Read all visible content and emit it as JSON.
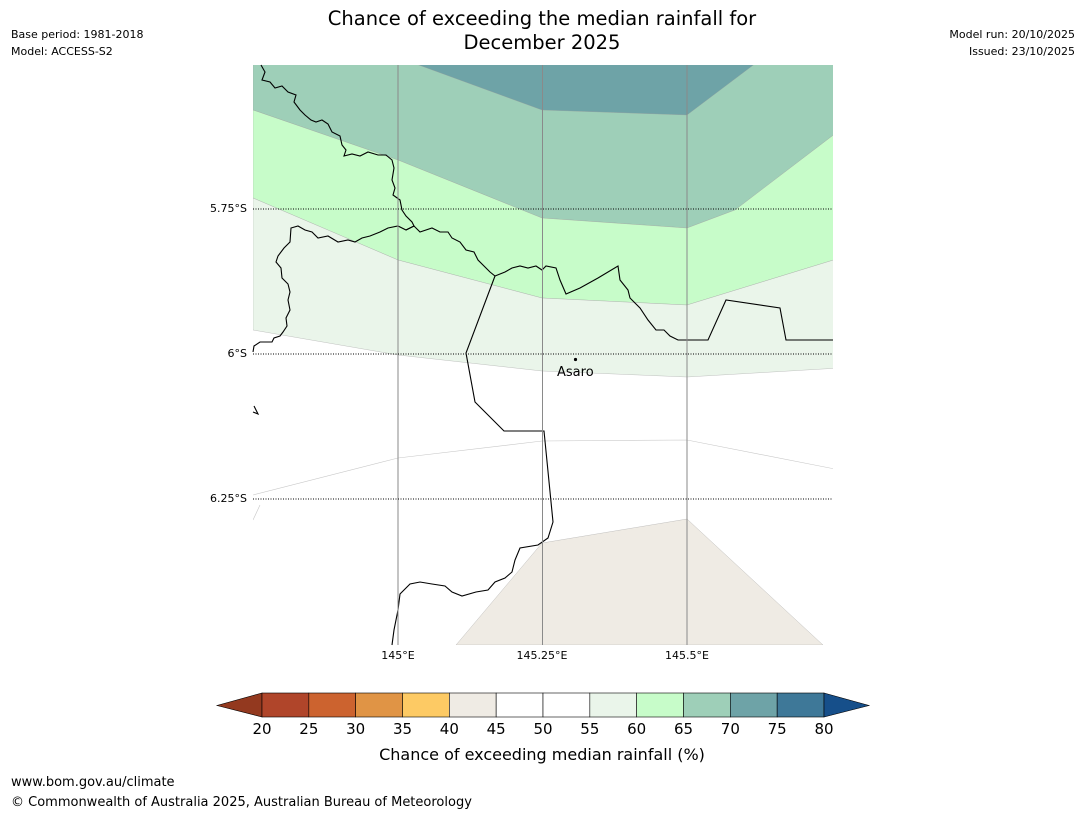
{
  "title": {
    "line1": "Chance of exceeding the median rainfall for",
    "line2": "December 2025"
  },
  "header_left": {
    "base_period": "Base period: 1981-2018",
    "model": "Model: ACCESS-S2"
  },
  "header_right": {
    "model_run": "Model run: 20/10/2025",
    "issued": "Issued: 23/10/2025"
  },
  "map": {
    "latitude_labels": [
      "5.75°S",
      "6°S",
      "6.25°S"
    ],
    "longitude_labels": [
      "145°E",
      "145.25°E",
      "145.5°E"
    ],
    "town": {
      "name": "Asaro"
    }
  },
  "colorbar": {
    "ticks": [
      "20",
      "25",
      "30",
      "35",
      "40",
      "45",
      "50",
      "55",
      "60",
      "65",
      "70",
      "75",
      "80"
    ],
    "colors": [
      "#b0452a",
      "#cc632f",
      "#e09445",
      "#fdca64",
      "#efebe4",
      "#ffffff",
      "#ffffff",
      "#eaf5ea",
      "#c7fcc9",
      "#9ecfb8",
      "#6ea3a7",
      "#3e7898"
    ],
    "under_color": "#93391f",
    "over_color": "#164f8a",
    "label": "Chance of exceeding median rainfall (%)"
  },
  "legend_colors": {
    "band_40_45": "#efebe4",
    "band_55_60": "#eaf5ea",
    "band_60_65": "#c7fcc9",
    "band_65_70": "#9ecfb8",
    "band_70_75": "#6ea3a7"
  },
  "footer": {
    "url": "www.bom.gov.au/climate",
    "copyright": "© Commonwealth of Australia 2025, Australian Bureau of Meteorology"
  }
}
